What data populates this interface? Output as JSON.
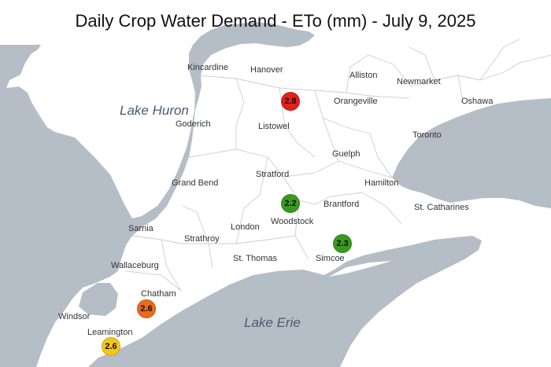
{
  "title": "Daily Crop Water Demand - ETo (mm) - July 9, 2025",
  "water_bodies": {
    "lake_huron": "Lake Huron",
    "lake_erie": "Lake Erie"
  },
  "cities": {
    "kincardine": "Kincardine",
    "hanover": "Hanover",
    "alliston": "Alliston",
    "newmarket": "Newmarket",
    "orangeville": "Orangeville",
    "oshawa": "Oshawa",
    "goderich": "Goderich",
    "listowel": "Listowel",
    "toronto": "Toronto",
    "guelph": "Guelph",
    "stratford": "Stratford",
    "grand_bend": "Grand Bend",
    "hamilton": "Hamilton",
    "brantford": "Brantford",
    "st_catharines": "St. Catharines",
    "woodstock": "Woodstock",
    "sarnia": "Sarnia",
    "london": "London",
    "strathroy": "Strathroy",
    "simcoe": "Simcoe",
    "wallaceburg": "Wallaceburg",
    "st_thomas": "St. Thomas",
    "chatham": "Chatham",
    "windsor": "Windsor",
    "leamington": "Leamington"
  },
  "markers": [
    {
      "value": "2.8",
      "color": "#e3201b"
    },
    {
      "value": "2.2",
      "color": "#3a9a1f"
    },
    {
      "value": "2.3",
      "color": "#3a9a1f"
    },
    {
      "value": "2.6",
      "color": "#ec6a1b"
    },
    {
      "value": "2.6",
      "color": "#f5c518"
    }
  ],
  "colors": {
    "land": "#ffffff",
    "water": "#b5bdc6",
    "boundary": "#c9ced4"
  }
}
